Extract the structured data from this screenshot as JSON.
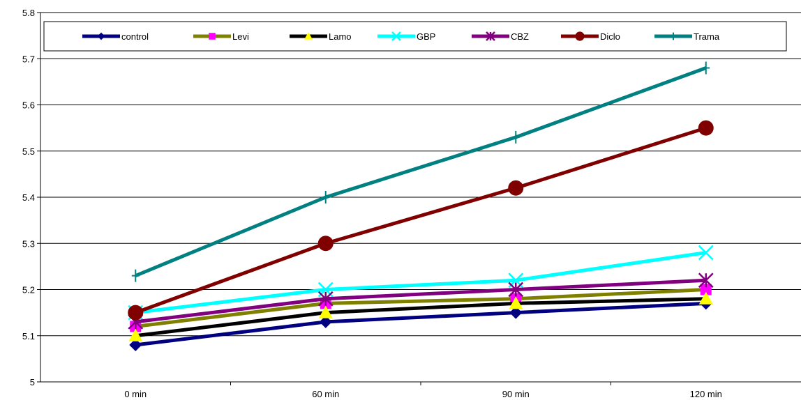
{
  "chart_data": {
    "type": "line",
    "title": "",
    "xlabel": "",
    "ylabel": "",
    "categories": [
      "0 min",
      "60 min",
      "90 min",
      "120 min"
    ],
    "ylim": [
      5,
      5.8
    ],
    "yticks": [
      "5",
      "5.1",
      "5.2",
      "5.3",
      "5.4",
      "5.5",
      "5.6",
      "5.7",
      "5.8"
    ],
    "grid": "horizontal",
    "legend_position": "top",
    "series": [
      {
        "name": "control",
        "color": "#000080",
        "marker": "diamond",
        "values": [
          5.08,
          5.13,
          5.15,
          5.17
        ]
      },
      {
        "name": "Levi",
        "color": "#808000",
        "marker": "square",
        "values": [
          5.12,
          5.17,
          5.18,
          5.2
        ]
      },
      {
        "name": "Lamo",
        "color": "#000000",
        "marker": "triangle",
        "values": [
          5.1,
          5.15,
          5.17,
          5.18
        ]
      },
      {
        "name": "GBP",
        "color": "#00FFFF",
        "marker": "x",
        "values": [
          5.15,
          5.2,
          5.22,
          5.28
        ]
      },
      {
        "name": "CBZ",
        "color": "#800080",
        "marker": "star",
        "values": [
          5.13,
          5.18,
          5.2,
          5.22
        ]
      },
      {
        "name": "Diclo",
        "color": "#800000",
        "marker": "circle",
        "values": [
          5.15,
          5.3,
          5.42,
          5.55
        ]
      },
      {
        "name": "Trama",
        "color": "#008080",
        "marker": "plus",
        "values": [
          5.23,
          5.4,
          5.53,
          5.68
        ]
      }
    ],
    "marker_fill": {
      "square": "#FF00FF",
      "triangle": "#FFFF00"
    }
  }
}
